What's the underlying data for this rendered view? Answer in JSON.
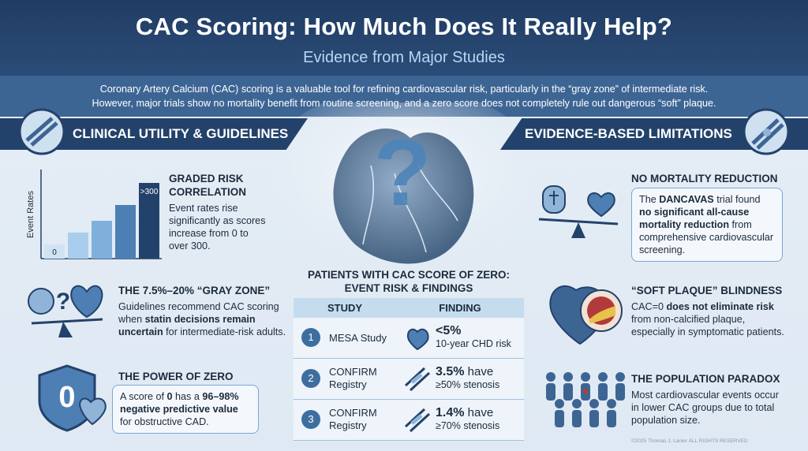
{
  "header": {
    "title": "CAC Scoring: How Much Does It Really Help?",
    "subtitle": "Evidence from Major Studies"
  },
  "intro": [
    "Coronary Artery Calcium (CAC) scoring is a valuable tool for refining cardiovascular risk, particularly in the “gray zone” of intermediate risk.",
    "However, major trials show no mortality benefit from routine screening, and a zero score does not completely rule out dangerous “soft” plaque."
  ],
  "hero": {
    "symbol": "?"
  },
  "left": {
    "heading": "CLINICAL UTILITY & GUIDELINES",
    "items": [
      {
        "title": "GRADED RISK CORRELATION",
        "body": [
          {
            "text": "Event rates rise significantly as scores increase from 0 to over 300."
          }
        ],
        "chart": {
          "axis_label": "Event Rates",
          "low_label": "0",
          "high_label": ">300"
        }
      },
      {
        "title": "THE 7.5%–20% “GRAY ZONE”",
        "body": [
          {
            "text": "Guidelines recommend CAC scoring when "
          },
          {
            "text": "statin decisions remain uncertain",
            "bold": true
          },
          {
            "text": " for intermediate-risk adults."
          }
        ]
      },
      {
        "title": "THE POWER OF ZERO",
        "badge": "0",
        "body": [
          {
            "text": "A score of "
          },
          {
            "text": "0",
            "bold": true
          },
          {
            "text": " has a "
          },
          {
            "text": "96–98% negative predictive value",
            "bold": true
          },
          {
            "text": " for obstructive CAD."
          }
        ]
      }
    ]
  },
  "right": {
    "heading": "EVIDENCE-BASED LIMITATIONS",
    "items": [
      {
        "title": "NO MORTALITY REDUCTION",
        "body": [
          {
            "text": "The "
          },
          {
            "text": "DANCAVAS",
            "bold": true
          },
          {
            "text": " trial found "
          },
          {
            "text": "no significant all-cause mortality reduction",
            "bold": true
          },
          {
            "text": " from comprehensive cardiovascular screening."
          }
        ]
      },
      {
        "title": "“SOFT PLAQUE” BLINDNESS",
        "body": [
          {
            "text": "CAC=0 "
          },
          {
            "text": "does not eliminate risk",
            "bold": true
          },
          {
            "text": " from non-calcified plaque, especially in symptomatic patients."
          }
        ]
      },
      {
        "title": "THE POPULATION PARADOX",
        "body": [
          {
            "text": "Most cardiovascular events occur in lower CAC groups due to total population size."
          }
        ]
      }
    ]
  },
  "table": {
    "title": "PATIENTS WITH CAC SCORE OF ZERO: EVENT RISK & FINDINGS",
    "columns": [
      "STUDY",
      "FINDING"
    ],
    "rows": [
      {
        "number": "1",
        "study": "MESA Study",
        "finding": [
          {
            "text": "<5%",
            "bold": true
          }
        ],
        "detail": "10-year CHD risk"
      },
      {
        "number": "2",
        "study": "CONFIRM Registry",
        "finding": [
          {
            "text": "3.5%",
            "bold": true
          },
          {
            "text": " have"
          }
        ],
        "detail": "≥50% stenosis"
      },
      {
        "number": "3",
        "study": "CONFIRM Registry",
        "finding": [
          {
            "text": "1.4%",
            "bold": true
          },
          {
            "text": " have"
          }
        ],
        "detail": "≥70% stenosis"
      }
    ]
  },
  "footer": "©2025 Thomas J. Lanier ALL RIGHTS RESERVED"
}
